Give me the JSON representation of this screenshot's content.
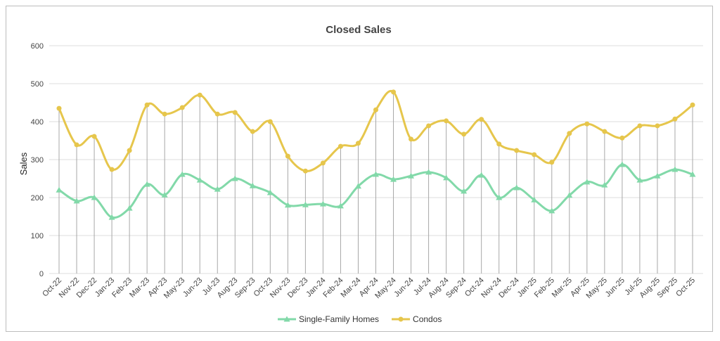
{
  "chart_data": {
    "type": "line",
    "title": "Closed Sales",
    "ylabel": "Sales",
    "xlabel": "",
    "ylim": [
      0,
      600
    ],
    "yticks": [
      0,
      100,
      200,
      300,
      400,
      500,
      600
    ],
    "grid": true,
    "legend": "bottom",
    "categories": [
      "Oct-22",
      "Nov-22",
      "Dec-22",
      "Jan-23",
      "Feb-23",
      "Mar-23",
      "Apr-23",
      "May-23",
      "Jun-23",
      "Jul-23",
      "Aug-23",
      "Sep-23",
      "Oct-23",
      "Nov-23",
      "Dec-23",
      "Jan-24",
      "Feb-24",
      "Mar-24",
      "Apr-24",
      "May-24",
      "Jun-24",
      "Jul-24",
      "Aug-24",
      "Sep-24",
      "Oct-24",
      "Nov-24",
      "Dec-24",
      "Jan-25",
      "Feb-25",
      "Mar-25",
      "Apr-25",
      "May-25",
      "Jun-25",
      "Jul-25",
      "Aug-25",
      "Sep-25",
      "Oct-25"
    ],
    "series": [
      {
        "name": "Single-Family Homes",
        "color": "#82d9a9",
        "marker": "triangle",
        "values": [
          220,
          191,
          200,
          148,
          172,
          235,
          207,
          261,
          246,
          222,
          250,
          231,
          213,
          180,
          181,
          183,
          178,
          230,
          261,
          248,
          257,
          267,
          252,
          217,
          259,
          200,
          226,
          194,
          165,
          206,
          241,
          233,
          287,
          246,
          257,
          274,
          261
        ]
      },
      {
        "name": "Condos",
        "color": "#e6c64c",
        "marker": "circle",
        "values": [
          435,
          339,
          361,
          274,
          324,
          444,
          420,
          437,
          470,
          420,
          424,
          374,
          400,
          309,
          270,
          291,
          335,
          343,
          431,
          478,
          354,
          389,
          402,
          367,
          406,
          341,
          324,
          313,
          293,
          369,
          394,
          374,
          357,
          389,
          389,
          407,
          444
        ]
      }
    ]
  }
}
